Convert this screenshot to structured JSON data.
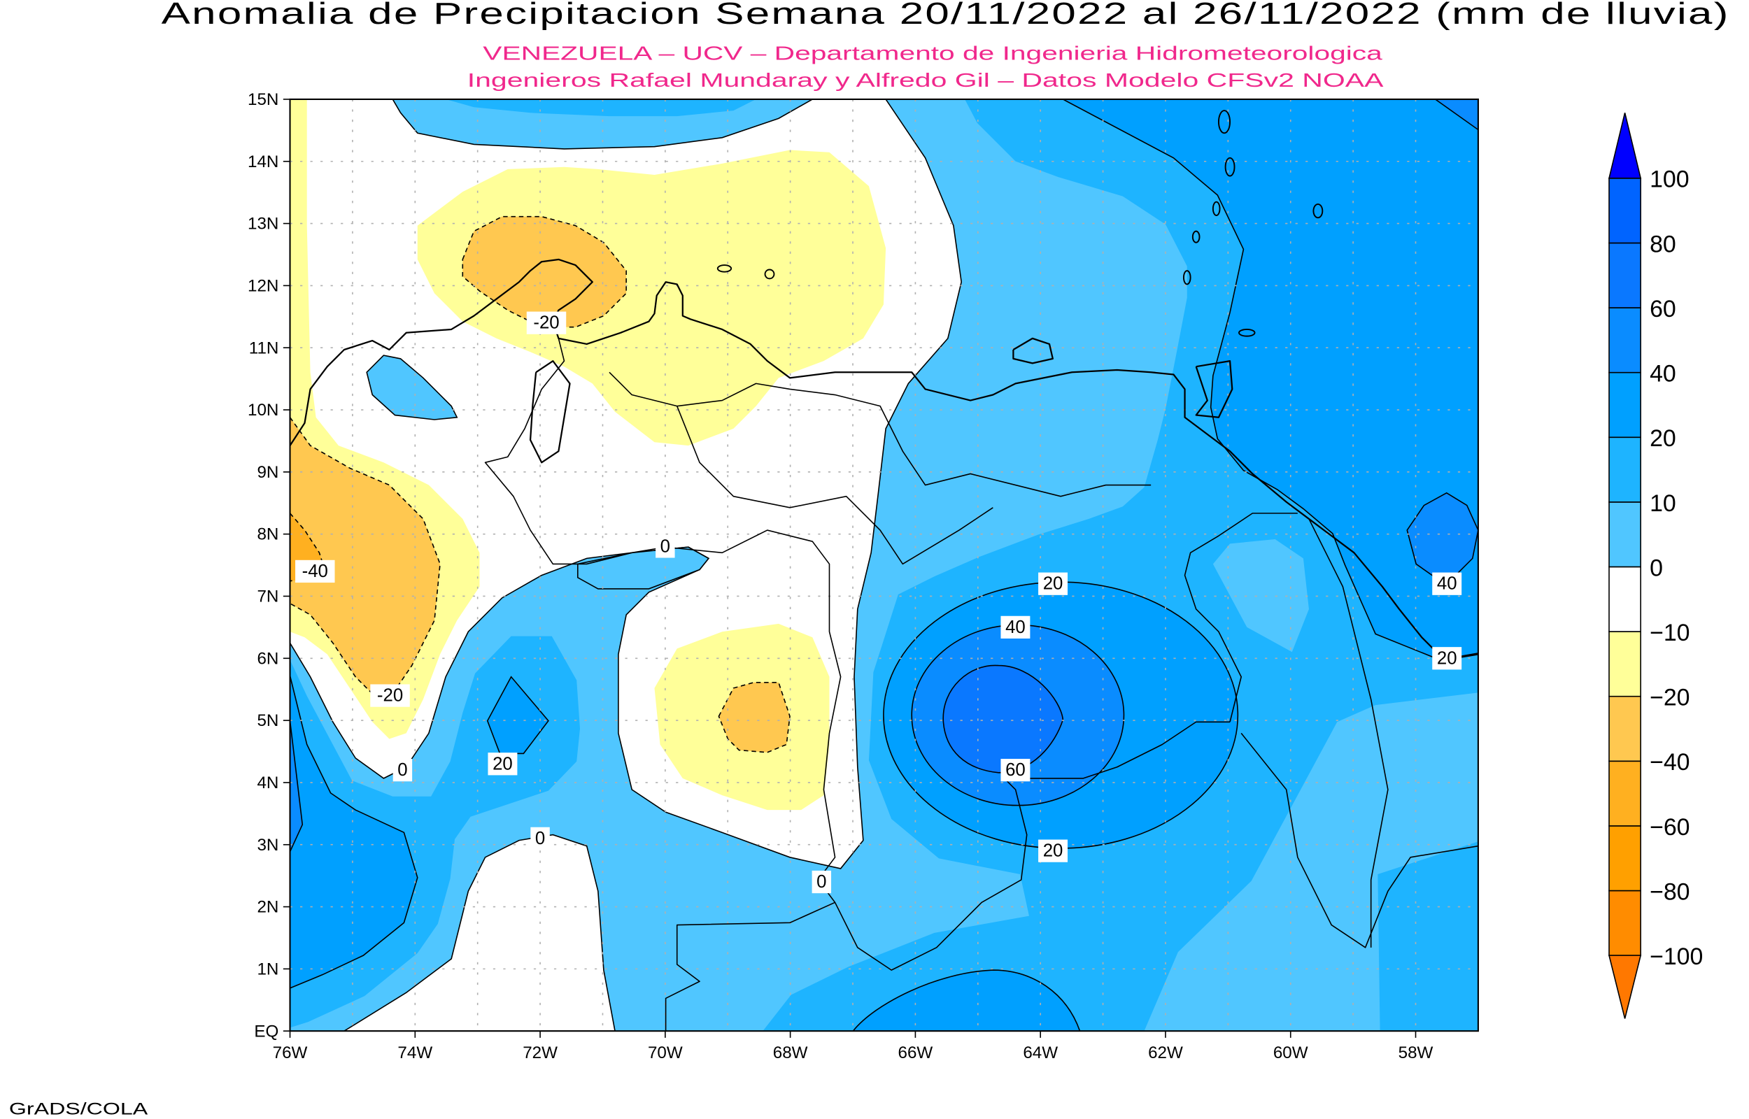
{
  "title": "Anomalia de Precipitacion Semana 20/11/2022 al 26/11/2022 (mm de lluvia)",
  "subtitle_lines": [
    "VENEZUELA – UCV – Departamento de Ingenieria Hidrometeorologica",
    "Ingenieros Rafael Mundaray y Alfredo Gil – Datos Modelo CFSv2 NOAA"
  ],
  "footer": "GrADS/COLA",
  "chart_data": {
    "type": "heatmap",
    "variant": "filled contour map",
    "title": "Anomalia de Precipitacion Semana 20/11/2022 al 26/11/2022 (mm de lluvia)",
    "xlabel": "",
    "ylabel": "",
    "lon_range": [
      -76,
      -57
    ],
    "lat_range": [
      0,
      15
    ],
    "grid": true,
    "x_ticks": [
      "76W",
      "74W",
      "72W",
      "70W",
      "68W",
      "66W",
      "64W",
      "62W",
      "60W",
      "58W"
    ],
    "x_tick_values": [
      -76,
      -74,
      -72,
      -70,
      -68,
      -66,
      -64,
      -62,
      -60,
      -58
    ],
    "y_ticks": [
      "EQ",
      "1N",
      "2N",
      "3N",
      "4N",
      "5N",
      "6N",
      "7N",
      "8N",
      "9N",
      "10N",
      "11N",
      "12N",
      "13N",
      "14N",
      "15N"
    ],
    "y_tick_values": [
      0,
      1,
      2,
      3,
      4,
      5,
      6,
      7,
      8,
      9,
      10,
      11,
      12,
      13,
      14,
      15
    ],
    "colorbar": {
      "position": "right",
      "levels": [
        -100,
        -80,
        -60,
        -40,
        -20,
        -10,
        0,
        10,
        20,
        40,
        60,
        80,
        100
      ],
      "labels": [
        "-100",
        "-80",
        "-60",
        "-40",
        "-20",
        "-10",
        "0",
        "10",
        "20",
        "40",
        "60",
        "80",
        "100"
      ],
      "colors": [
        "#ff7800",
        "#ff8c00",
        "#ffa000",
        "#ffb020",
        "#ffc850",
        "#ffff99",
        "#ffffff",
        "#50c6ff",
        "#1eb4ff",
        "#00a0ff",
        "#0a8cff",
        "#0a78ff",
        "#0064ff",
        "#0000ff"
      ]
    },
    "contour_lines": [
      -40,
      -20,
      0,
      20,
      40,
      60
    ],
    "contour_labels": [
      {
        "text": "-20",
        "lon": -71.9,
        "lat": 11.4
      },
      {
        "text": "-40",
        "lon": -75.6,
        "lat": 7.4
      },
      {
        "text": "-20",
        "lon": -74.4,
        "lat": 5.4
      },
      {
        "text": "0",
        "lon": -74.2,
        "lat": 4.2
      },
      {
        "text": "20",
        "lon": -72.6,
        "lat": 4.3
      },
      {
        "text": "0",
        "lon": -72.0,
        "lat": 3.1
      },
      {
        "text": "0",
        "lon": -70.0,
        "lat": 7.8
      },
      {
        "text": "0",
        "lon": -67.5,
        "lat": 2.4
      },
      {
        "text": "20",
        "lon": -63.8,
        "lat": 7.2
      },
      {
        "text": "40",
        "lon": -64.4,
        "lat": 6.5
      },
      {
        "text": "60",
        "lon": -64.4,
        "lat": 4.2
      },
      {
        "text": "20",
        "lon": -63.8,
        "lat": 2.9
      },
      {
        "text": "40",
        "lon": -57.5,
        "lat": 7.2
      },
      {
        "text": "20",
        "lon": -57.5,
        "lat": 6.0
      }
    ]
  }
}
